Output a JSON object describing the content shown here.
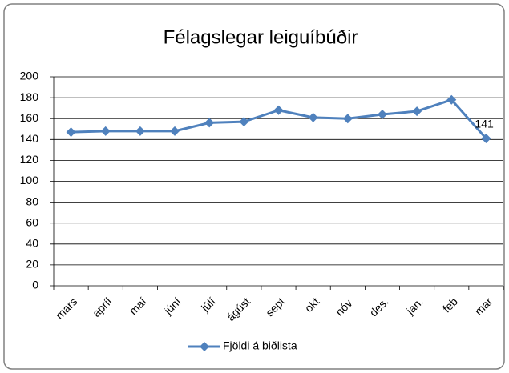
{
  "chart_data": {
    "type": "line",
    "title": "Félagslegar leiguíbúðir",
    "categories": [
      "mars",
      "apríl",
      "maí",
      "júní",
      "júlí",
      "ágúst",
      "sept",
      "okt",
      "nóv.",
      "des.",
      "jan.",
      "feb",
      "mar"
    ],
    "series": [
      {
        "name": "Fjöldi á biðlista",
        "color": "#4f81bd",
        "values": [
          147,
          148,
          148,
          148,
          156,
          157,
          168,
          161,
          160,
          164,
          167,
          178,
          141
        ]
      }
    ],
    "ylim": [
      0,
      200
    ],
    "yticks": [
      0,
      20,
      40,
      60,
      80,
      100,
      120,
      140,
      160,
      180,
      200
    ],
    "grid": true,
    "legend": "bottom"
  }
}
